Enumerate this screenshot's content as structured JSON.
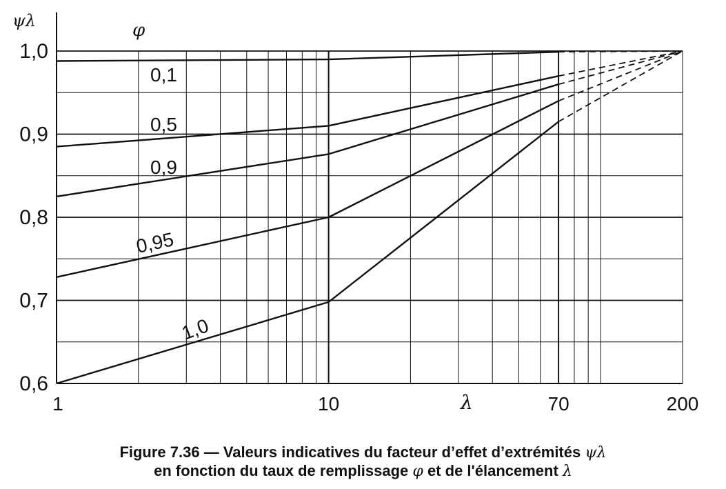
{
  "chart_data": {
    "type": "line",
    "x_scale": "log",
    "xlim": [
      1,
      200
    ],
    "ylim": [
      0.6,
      1.0
    ],
    "ylabel": "ψλ",
    "xlabel": "λ",
    "legend_title": "φ",
    "x_tick_labels": [
      {
        "value": 1,
        "label": "1"
      },
      {
        "value": 10,
        "label": "10"
      },
      {
        "value": 70,
        "label": "70"
      },
      {
        "value": 200,
        "label": "200"
      }
    ],
    "y_tick_labels": [
      {
        "value": 1.0,
        "label": "1,0"
      },
      {
        "value": 0.9,
        "label": "0,9"
      },
      {
        "value": 0.8,
        "label": "0,8"
      },
      {
        "value": 0.7,
        "label": "0,7"
      },
      {
        "value": 0.6,
        "label": "0,6"
      }
    ],
    "x_minor_gridlines": [
      2,
      3,
      4,
      5,
      6,
      7,
      8,
      9,
      20,
      30,
      40,
      50,
      60,
      80,
      90,
      100,
      200
    ],
    "y_gridlines": [
      0.6,
      0.65,
      0.7,
      0.75,
      0.8,
      0.85,
      0.9,
      0.95,
      1.0
    ],
    "series": [
      {
        "name": "0,1",
        "solid": [
          [
            1,
            0.988
          ],
          [
            10,
            0.99
          ],
          [
            70,
            0.999
          ]
        ],
        "dashed": [
          [
            70,
            0.999
          ],
          [
            200,
            1.0
          ]
        ]
      },
      {
        "name": "0,5",
        "solid": [
          [
            1,
            0.885
          ],
          [
            10,
            0.91
          ],
          [
            70,
            0.97
          ]
        ],
        "dashed": [
          [
            70,
            0.97
          ],
          [
            200,
            1.0
          ]
        ]
      },
      {
        "name": "0,9",
        "solid": [
          [
            1,
            0.825
          ],
          [
            10,
            0.876
          ],
          [
            70,
            0.96
          ]
        ],
        "dashed": [
          [
            70,
            0.96
          ],
          [
            200,
            1.0
          ]
        ]
      },
      {
        "name": "0,95",
        "solid": [
          [
            1,
            0.728
          ],
          [
            10,
            0.8
          ],
          [
            70,
            0.94
          ]
        ],
        "dashed": [
          [
            70,
            0.94
          ],
          [
            200,
            1.0
          ]
        ]
      },
      {
        "name": "1,0",
        "solid": [
          [
            1,
            0.6
          ],
          [
            10,
            0.698
          ],
          [
            70,
            0.915
          ]
        ],
        "dashed": [
          [
            70,
            0.915
          ],
          [
            200,
            1.0
          ]
        ]
      }
    ]
  },
  "caption": {
    "line1_text": "Figure 7.36 — Valeurs indicatives du facteur d’effet d’extrémités",
    "line1_symbol": "ψλ",
    "line2_text_a": "en fonction du taux de remplissage",
    "line2_symbol_a": "φ",
    "line2_text_b": "et de l'élancement",
    "line2_symbol_b": "λ"
  }
}
